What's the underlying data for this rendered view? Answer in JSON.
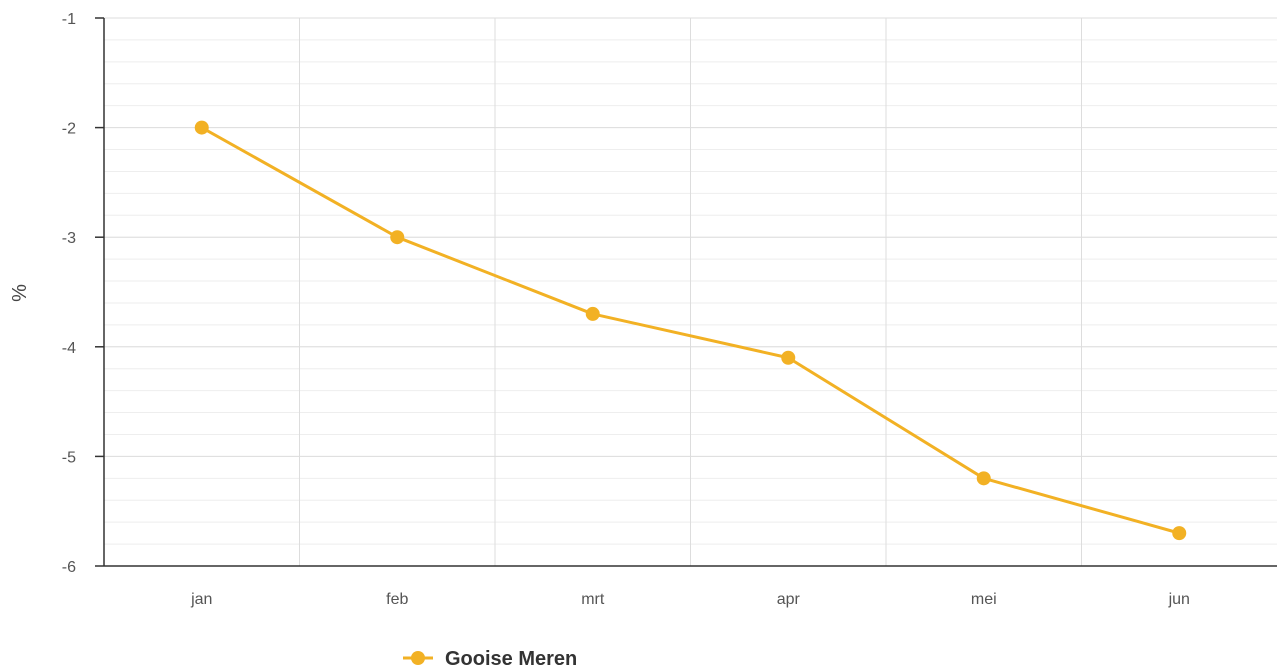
{
  "chart_data": {
    "type": "line",
    "categories": [
      "jan",
      "feb",
      "mrt",
      "apr",
      "mei",
      "jun"
    ],
    "series": [
      {
        "name": "Gooise Meren",
        "values": [
          -2.0,
          -3.0,
          -3.7,
          -4.1,
          -5.2,
          -5.7
        ],
        "color": "#f2b124"
      }
    ],
    "ylabel": "%",
    "ylim": [
      -6,
      -1
    ],
    "yticks": [
      -1,
      -2,
      -3,
      -4,
      -5,
      -6
    ],
    "grid": true,
    "legend_position": "bottom-left"
  },
  "colors": {
    "axis": "#333333",
    "grid_major": "#dddddd",
    "grid_minor": "#eeeeee"
  }
}
